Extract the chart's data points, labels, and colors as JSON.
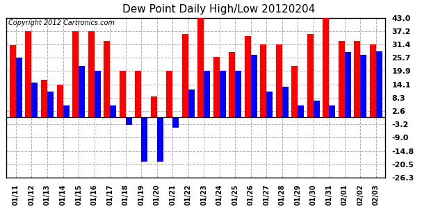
{
  "title": "Dew Point Daily High/Low 20120204",
  "copyright": "Copyright 2012 Cartronics.com",
  "dates": [
    "01/11",
    "01/12",
    "01/13",
    "01/14",
    "01/15",
    "01/16",
    "01/17",
    "01/18",
    "01/19",
    "01/20",
    "01/21",
    "01/22",
    "01/23",
    "01/24",
    "01/25",
    "01/26",
    "01/27",
    "01/28",
    "01/29",
    "01/30",
    "01/31",
    "02/01",
    "02/02",
    "02/03"
  ],
  "high": [
    31.0,
    37.2,
    16.0,
    14.0,
    37.2,
    37.2,
    33.0,
    20.0,
    20.0,
    9.0,
    19.9,
    36.0,
    43.0,
    26.0,
    28.0,
    35.0,
    31.4,
    31.4,
    22.0,
    36.0,
    43.0,
    33.0,
    33.0,
    31.4
  ],
  "low": [
    25.7,
    15.0,
    11.0,
    5.0,
    22.0,
    20.0,
    5.0,
    -3.5,
    -19.5,
    -19.5,
    -4.5,
    12.0,
    19.9,
    19.9,
    19.9,
    27.0,
    11.0,
    13.0,
    5.0,
    7.0,
    5.0,
    28.0,
    27.0,
    28.5
  ],
  "ylim": [
    -26.3,
    43.0
  ],
  "yticks": [
    43.0,
    37.2,
    31.4,
    25.7,
    19.9,
    14.1,
    8.3,
    2.6,
    -3.2,
    -9.0,
    -14.8,
    -20.5,
    -26.3
  ],
  "bar_width": 0.4,
  "high_color": "#ff0000",
  "low_color": "#0000ff",
  "bg_color": "#ffffff",
  "plot_bg_color": "#ffffff",
  "grid_color": "#b0b0b0",
  "title_fontsize": 11,
  "copyright_fontsize": 7
}
